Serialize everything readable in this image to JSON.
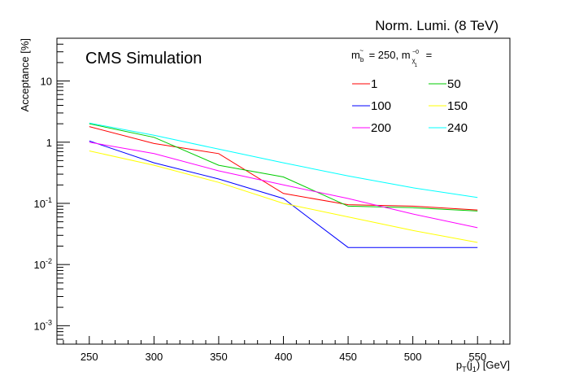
{
  "chart_data": {
    "type": "line",
    "title": "Norm. Lumi. (8 TeV)",
    "annotation": "CMS Simulation",
    "xlabel": "p_T(j_1) [GeV]",
    "ylabel": "Acceptance [%]",
    "xlim": [
      225,
      575
    ],
    "ylim": [
      0.0005,
      50
    ],
    "log_y": true,
    "grid": false,
    "legend_placement": "top-right",
    "legend_title": "m_b̃ = 250, m_χ̃₁⁰ =",
    "x_ticks": [
      "250",
      "300",
      "350",
      "400",
      "450",
      "500",
      "550"
    ],
    "y_ticks": [
      {
        "value": 0.001,
        "base": "10",
        "exp": "-3"
      },
      {
        "value": 0.01,
        "base": "10",
        "exp": "-2"
      },
      {
        "value": 0.1,
        "base": "10",
        "exp": "-1"
      },
      {
        "value": 1,
        "base": "1",
        "exp": ""
      },
      {
        "value": 10,
        "base": "10",
        "exp": ""
      }
    ],
    "x": [
      250,
      300,
      350,
      400,
      450,
      500,
      550
    ],
    "series": [
      {
        "name": "1",
        "color": "#ff0000",
        "values": [
          1.8,
          0.95,
          0.65,
          0.145,
          0.095,
          0.09,
          0.078
        ]
      },
      {
        "name": "50",
        "color": "#00cc00",
        "values": [
          2.0,
          1.2,
          0.42,
          0.27,
          0.09,
          0.085,
          0.075
        ]
      },
      {
        "name": "100",
        "color": "#0000ff",
        "values": [
          1.05,
          0.46,
          0.25,
          0.12,
          0.019,
          0.019,
          0.019
        ]
      },
      {
        "name": "150",
        "color": "#ffff00",
        "values": [
          0.72,
          0.42,
          0.22,
          0.1,
          0.06,
          0.036,
          0.023
        ]
      },
      {
        "name": "200",
        "color": "#ff00ff",
        "values": [
          1.0,
          0.65,
          0.34,
          0.2,
          0.12,
          0.067,
          0.04
        ]
      },
      {
        "name": "240",
        "color": "#00ffff",
        "values": [
          2.05,
          1.3,
          0.77,
          0.46,
          0.28,
          0.18,
          0.125
        ]
      }
    ]
  }
}
